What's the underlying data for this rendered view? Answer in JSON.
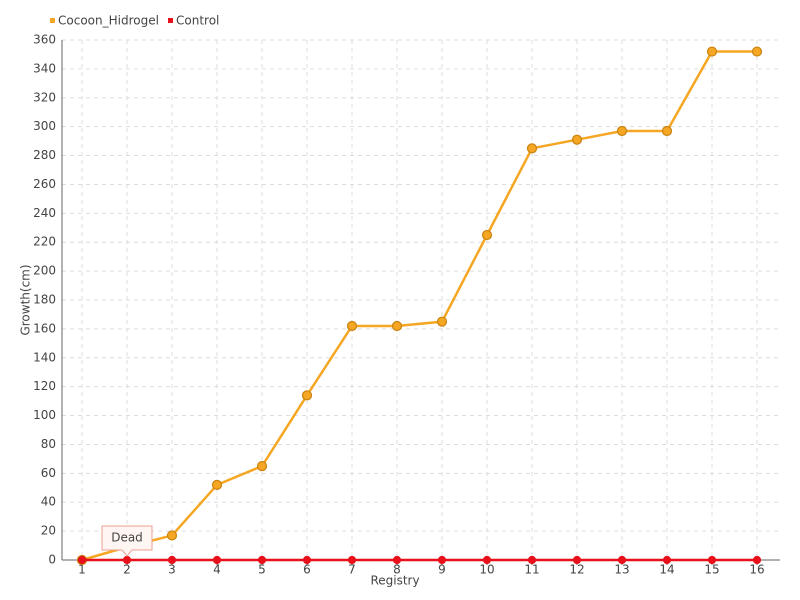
{
  "chart_data": {
    "type": "line",
    "x_label": "Registry",
    "y_label": "Growth(cm)",
    "categories": [
      "1",
      "2",
      "3",
      "4",
      "5",
      "6",
      "7",
      "8",
      "9",
      "10",
      "11",
      "12",
      "13",
      "14",
      "15",
      "16"
    ],
    "series": [
      {
        "name": "Cocoon_Hidrogel",
        "color": "#f5a623",
        "values": [
          0,
          9,
          17,
          52,
          65,
          114,
          162,
          162,
          165,
          225,
          285,
          291,
          297,
          297,
          352,
          352
        ]
      },
      {
        "name": "Control",
        "color": "#e8101a",
        "values": [
          0,
          0,
          0,
          0,
          0,
          0,
          0,
          0,
          0,
          0,
          0,
          0,
          0,
          0,
          0,
          0
        ]
      }
    ],
    "annotation": "Dead",
    "ylim": [
      0,
      360
    ],
    "yticks": [
      0,
      20,
      40,
      60,
      80,
      100,
      120,
      140,
      160,
      180,
      200,
      220,
      240,
      260,
      280,
      300,
      320,
      340,
      360
    ],
    "grid": true
  }
}
